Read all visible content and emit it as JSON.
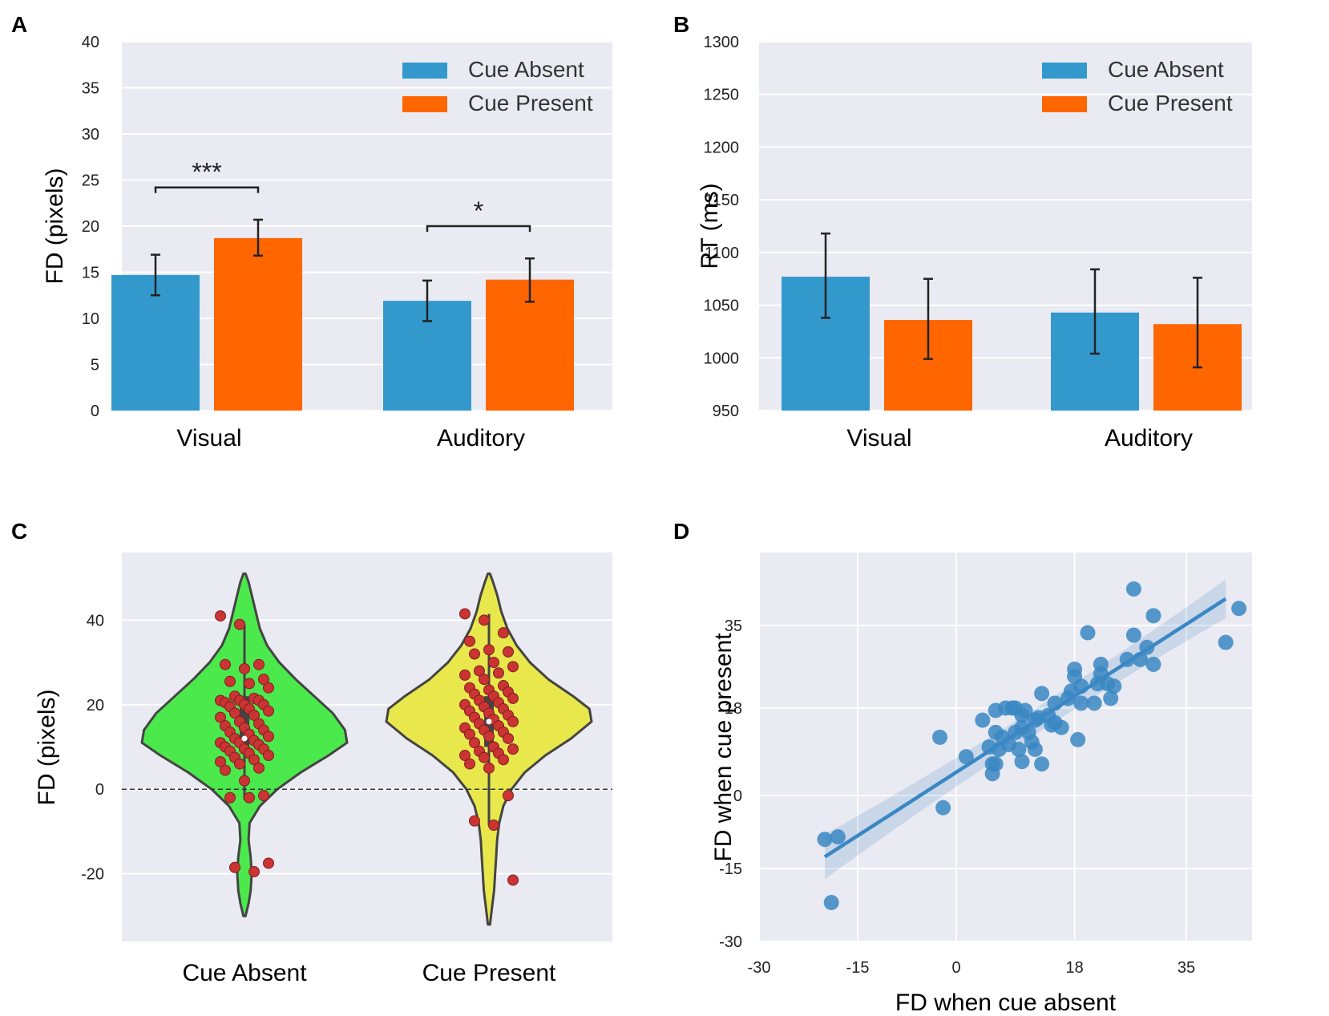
{
  "figure": {
    "panel_letters": [
      "A",
      "B",
      "C",
      "D"
    ],
    "colors": {
      "cue_absent": "#3399cc",
      "cue_present": "#ff6600",
      "violin_absent": "#4ce94c",
      "violin_present": "#e8e84c",
      "dots": "#cc3333",
      "scatter": "#3a87c3",
      "plot_bg": "#eaeaf2",
      "grid": "#ffffff"
    }
  },
  "chart_data": [
    {
      "panel": "A",
      "type": "bar",
      "ylabel": "FD (pixels)",
      "xlabel": "",
      "categories": [
        "Visual",
        "Auditory"
      ],
      "ylim": [
        0,
        40
      ],
      "yticks": [
        0,
        5,
        10,
        15,
        20,
        25,
        30,
        35,
        40
      ],
      "grid": true,
      "legend": "top-right",
      "series": [
        {
          "name": "Cue Absent",
          "values": [
            14.7,
            11.9
          ],
          "error_low": [
            12.5,
            9.7
          ],
          "error_high": [
            16.9,
            14.1
          ]
        },
        {
          "name": "Cue Present",
          "values": [
            18.7,
            14.2
          ],
          "error_low": [
            16.8,
            11.8
          ],
          "error_high": [
            20.7,
            16.5
          ]
        }
      ],
      "significance": [
        {
          "category": "Visual",
          "label": "***",
          "y": 24.2
        },
        {
          "category": "Auditory",
          "label": "*",
          "y": 20.0
        }
      ]
    },
    {
      "panel": "B",
      "type": "bar",
      "ylabel": "RT (ms)",
      "xlabel": "",
      "categories": [
        "Visual",
        "Auditory"
      ],
      "ylim": [
        950,
        1300
      ],
      "yticks": [
        950,
        1000,
        1050,
        1100,
        1150,
        1200,
        1250,
        1300
      ],
      "grid": true,
      "legend": "top-right",
      "series": [
        {
          "name": "Cue Absent",
          "values": [
            1077,
            1043
          ],
          "error_low": [
            1038,
            1004
          ],
          "error_high": [
            1118,
            1084
          ]
        },
        {
          "name": "Cue Present",
          "values": [
            1036,
            1032
          ],
          "error_low": [
            999,
            991
          ],
          "error_high": [
            1075,
            1076
          ]
        }
      ]
    },
    {
      "panel": "C",
      "type": "violin",
      "ylabel": "FD (pixels)",
      "xlabel": "",
      "categories": [
        "Cue Absent",
        "Cue Present"
      ],
      "ylim": [
        -36,
        56
      ],
      "yticks": [
        -20,
        0,
        20,
        40
      ],
      "grid": true,
      "reference_line": 0,
      "violins": [
        {
          "name": "Cue Absent",
          "min": -30,
          "max": 51,
          "whisker": [
            -2.5,
            39
          ],
          "median": 12,
          "q1": 9,
          "q3": 22,
          "profile": [
            [
              -30,
              0.01
            ],
            [
              -27,
              0.04
            ],
            [
              -24,
              0.06
            ],
            [
              -20,
              0.07
            ],
            [
              -16,
              0.06
            ],
            [
              -12,
              0.04
            ],
            [
              -8,
              0.05
            ],
            [
              -4,
              0.15
            ],
            [
              0,
              0.32
            ],
            [
              4,
              0.55
            ],
            [
              8,
              0.82
            ],
            [
              11,
              1.0
            ],
            [
              14,
              0.98
            ],
            [
              18,
              0.86
            ],
            [
              22,
              0.68
            ],
            [
              26,
              0.5
            ],
            [
              30,
              0.34
            ],
            [
              34,
              0.22
            ],
            [
              38,
              0.15
            ],
            [
              42,
              0.11
            ],
            [
              46,
              0.07
            ],
            [
              49,
              0.04
            ],
            [
              51,
              0.01
            ]
          ],
          "points": [
            41,
            39,
            29.5,
            29.5,
            28.5,
            26,
            25.5,
            25,
            24,
            22,
            21.5,
            21,
            21,
            21,
            20.5,
            20,
            20,
            19.5,
            19,
            18.5,
            18,
            17.5,
            17,
            16,
            15.5,
            15,
            14.5,
            14,
            13.5,
            13,
            12.5,
            12,
            11.5,
            11,
            11,
            10.5,
            10,
            9.5,
            9.5,
            9,
            8.5,
            8,
            7.5,
            7,
            6.5,
            6,
            5,
            4.5,
            2,
            -1.5,
            -2,
            -2,
            -17.5,
            -18.5,
            -19.5
          ]
        },
        {
          "name": "Cue Present",
          "min": -32,
          "max": 51,
          "whisker": [
            -8.5,
            41.5
          ],
          "median": 16,
          "q1": 10,
          "q3": 22,
          "profile": [
            [
              -32,
              0.01
            ],
            [
              -28,
              0.03
            ],
            [
              -24,
              0.05
            ],
            [
              -20,
              0.06
            ],
            [
              -16,
              0.07
            ],
            [
              -12,
              0.08
            ],
            [
              -8,
              0.1
            ],
            [
              -4,
              0.14
            ],
            [
              0,
              0.22
            ],
            [
              4,
              0.35
            ],
            [
              8,
              0.55
            ],
            [
              12,
              0.8
            ],
            [
              16,
              1.0
            ],
            [
              19,
              0.98
            ],
            [
              22,
              0.82
            ],
            [
              26,
              0.58
            ],
            [
              30,
              0.4
            ],
            [
              34,
              0.27
            ],
            [
              38,
              0.18
            ],
            [
              42,
              0.12
            ],
            [
              46,
              0.08
            ],
            [
              49,
              0.04
            ],
            [
              51,
              0.01
            ]
          ],
          "points": [
            41.5,
            40,
            37,
            35,
            33,
            32.5,
            32,
            30,
            29,
            28,
            27.5,
            27,
            26,
            24.5,
            24,
            23.5,
            23,
            22.5,
            22,
            21.5,
            21,
            20.5,
            20,
            19.5,
            19,
            18.5,
            18,
            17.5,
            17,
            16.5,
            16,
            15.5,
            15,
            14.5,
            14,
            13.5,
            13,
            12.5,
            12,
            11,
            10,
            9.5,
            9,
            8.5,
            8,
            7.5,
            7,
            6,
            5,
            -1.5,
            -7.5,
            -8.5,
            -21.5
          ]
        }
      ]
    },
    {
      "panel": "D",
      "type": "scatter",
      "xlabel": "FD when cue absent",
      "ylabel": "FD when cue present",
      "xlim": [
        -30,
        45
      ],
      "ylim": [
        -30,
        50
      ],
      "xticks": [
        -30,
        -15,
        0,
        18,
        35
      ],
      "yticks": [
        -30,
        -15,
        0,
        18,
        35
      ],
      "grid": true,
      "regression": {
        "slope": 0.87,
        "intercept": 4.8,
        "x_range": [
          -20,
          41
        ]
      },
      "points": [
        [
          -20,
          -9
        ],
        [
          -18,
          -8.5
        ],
        [
          -19,
          -22
        ],
        [
          -2.5,
          12
        ],
        [
          -2,
          -2.5
        ],
        [
          1.5,
          8
        ],
        [
          4,
          15.5
        ],
        [
          5,
          10
        ],
        [
          5.5,
          4.5
        ],
        [
          5.5,
          6.5
        ],
        [
          6,
          6.5
        ],
        [
          6,
          13
        ],
        [
          6,
          17.5
        ],
        [
          6.5,
          9.5
        ],
        [
          7,
          12
        ],
        [
          7.5,
          18
        ],
        [
          8,
          10.5
        ],
        [
          8.5,
          18
        ],
        [
          9,
          13
        ],
        [
          9,
          18
        ],
        [
          9.5,
          9.5
        ],
        [
          10,
          7
        ],
        [
          10,
          14
        ],
        [
          10,
          16.5
        ],
        [
          10.5,
          17.5
        ],
        [
          11,
          13
        ],
        [
          11.5,
          11
        ],
        [
          12,
          9.5
        ],
        [
          12,
          15.5
        ],
        [
          12.5,
          16
        ],
        [
          13,
          6.5
        ],
        [
          13,
          21
        ],
        [
          14,
          16.5
        ],
        [
          14.5,
          14.5
        ],
        [
          15,
          19
        ],
        [
          15,
          15
        ],
        [
          16,
          14
        ],
        [
          17,
          20
        ],
        [
          17.5,
          21.5
        ],
        [
          18,
          24.5
        ],
        [
          18,
          26
        ],
        [
          18.5,
          11.5
        ],
        [
          19,
          19
        ],
        [
          19,
          22.5
        ],
        [
          20,
          33.5
        ],
        [
          21,
          19
        ],
        [
          21.5,
          23
        ],
        [
          22,
          25
        ],
        [
          22,
          27
        ],
        [
          23,
          23
        ],
        [
          23.5,
          20
        ],
        [
          24,
          22.5
        ],
        [
          26,
          28
        ],
        [
          27,
          33
        ],
        [
          27,
          42.5
        ],
        [
          28,
          28
        ],
        [
          29,
          30.5
        ],
        [
          30,
          27
        ],
        [
          30,
          37
        ],
        [
          41,
          31.5
        ],
        [
          43,
          38.5
        ]
      ]
    }
  ]
}
